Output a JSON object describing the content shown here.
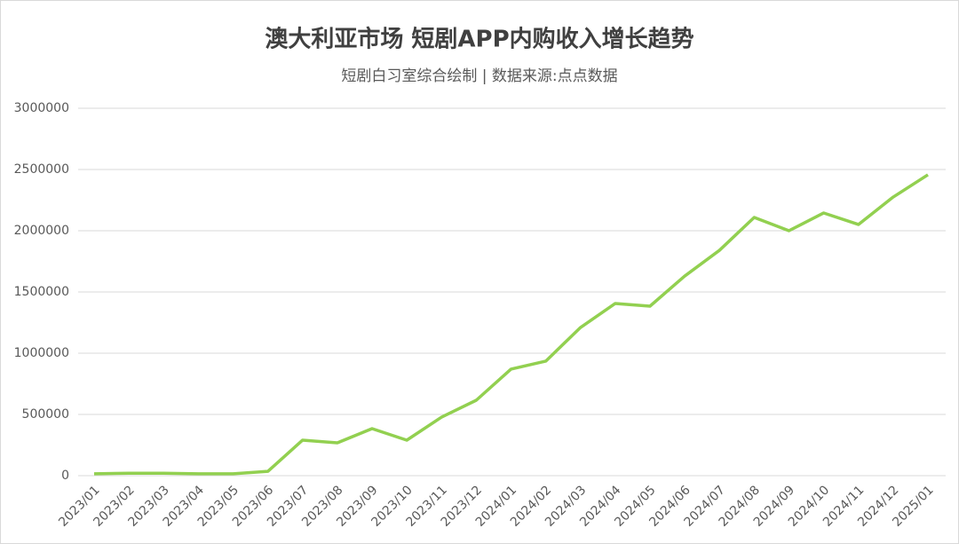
{
  "chart_data": {
    "type": "line",
    "title": "澳大利亚市场 短剧APP内购收入增长趋势",
    "subtitle": "短剧白习室综合绘制 | 数据来源:点点数据",
    "categories": [
      "2023/01",
      "2023/02",
      "2023/03",
      "2023/04",
      "2023/05",
      "2023/06",
      "2023/07",
      "2023/08",
      "2023/09",
      "2023/10",
      "2023/11",
      "2023/12",
      "2024/01",
      "2024/02",
      "2024/03",
      "2024/04",
      "2024/05",
      "2024/06",
      "2024/07",
      "2024/08",
      "2024/09",
      "2024/10",
      "2024/11",
      "2024/12",
      "2025/01"
    ],
    "series": [
      {
        "name": "内购收入",
        "color": "#92d050",
        "values": [
          15000,
          20000,
          20000,
          15000,
          15000,
          35000,
          290000,
          268000,
          384000,
          290000,
          478000,
          616000,
          870000,
          935000,
          1210000,
          1406000,
          1384000,
          1630000,
          1840000,
          2109000,
          2000000,
          2145000,
          2051000,
          2275000,
          2457000
        ]
      }
    ],
    "ylim": [
      0,
      3000000
    ],
    "yticks": [
      0,
      500000,
      1000000,
      1500000,
      2000000,
      2500000,
      3000000
    ],
    "grid": true
  }
}
